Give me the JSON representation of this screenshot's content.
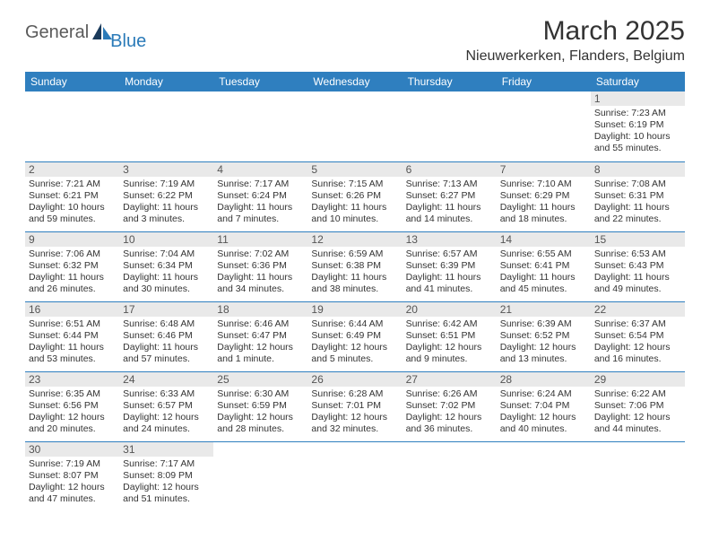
{
  "header": {
    "logo_text1": "General",
    "logo_text2": "Blue",
    "month_title": "March 2025",
    "location": "Nieuwerkerken, Flanders, Belgium"
  },
  "colors": {
    "header_bg": "#2f7fbf",
    "header_fg": "#ffffff",
    "daynum_bg": "#e9e9e9",
    "border": "#2f7fbf",
    "logo_gray": "#5a5a5a",
    "logo_blue": "#2a7ab8"
  },
  "calendar": {
    "day_headers": [
      "Sunday",
      "Monday",
      "Tuesday",
      "Wednesday",
      "Thursday",
      "Friday",
      "Saturday"
    ],
    "weeks": [
      [
        {
          "empty": true
        },
        {
          "empty": true
        },
        {
          "empty": true
        },
        {
          "empty": true
        },
        {
          "empty": true
        },
        {
          "empty": true
        },
        {
          "num": "1",
          "sunrise": "Sunrise: 7:23 AM",
          "sunset": "Sunset: 6:19 PM",
          "daylight1": "Daylight: 10 hours",
          "daylight2": "and 55 minutes."
        }
      ],
      [
        {
          "num": "2",
          "sunrise": "Sunrise: 7:21 AM",
          "sunset": "Sunset: 6:21 PM",
          "daylight1": "Daylight: 10 hours",
          "daylight2": "and 59 minutes."
        },
        {
          "num": "3",
          "sunrise": "Sunrise: 7:19 AM",
          "sunset": "Sunset: 6:22 PM",
          "daylight1": "Daylight: 11 hours",
          "daylight2": "and 3 minutes."
        },
        {
          "num": "4",
          "sunrise": "Sunrise: 7:17 AM",
          "sunset": "Sunset: 6:24 PM",
          "daylight1": "Daylight: 11 hours",
          "daylight2": "and 7 minutes."
        },
        {
          "num": "5",
          "sunrise": "Sunrise: 7:15 AM",
          "sunset": "Sunset: 6:26 PM",
          "daylight1": "Daylight: 11 hours",
          "daylight2": "and 10 minutes."
        },
        {
          "num": "6",
          "sunrise": "Sunrise: 7:13 AM",
          "sunset": "Sunset: 6:27 PM",
          "daylight1": "Daylight: 11 hours",
          "daylight2": "and 14 minutes."
        },
        {
          "num": "7",
          "sunrise": "Sunrise: 7:10 AM",
          "sunset": "Sunset: 6:29 PM",
          "daylight1": "Daylight: 11 hours",
          "daylight2": "and 18 minutes."
        },
        {
          "num": "8",
          "sunrise": "Sunrise: 7:08 AM",
          "sunset": "Sunset: 6:31 PM",
          "daylight1": "Daylight: 11 hours",
          "daylight2": "and 22 minutes."
        }
      ],
      [
        {
          "num": "9",
          "sunrise": "Sunrise: 7:06 AM",
          "sunset": "Sunset: 6:32 PM",
          "daylight1": "Daylight: 11 hours",
          "daylight2": "and 26 minutes."
        },
        {
          "num": "10",
          "sunrise": "Sunrise: 7:04 AM",
          "sunset": "Sunset: 6:34 PM",
          "daylight1": "Daylight: 11 hours",
          "daylight2": "and 30 minutes."
        },
        {
          "num": "11",
          "sunrise": "Sunrise: 7:02 AM",
          "sunset": "Sunset: 6:36 PM",
          "daylight1": "Daylight: 11 hours",
          "daylight2": "and 34 minutes."
        },
        {
          "num": "12",
          "sunrise": "Sunrise: 6:59 AM",
          "sunset": "Sunset: 6:38 PM",
          "daylight1": "Daylight: 11 hours",
          "daylight2": "and 38 minutes."
        },
        {
          "num": "13",
          "sunrise": "Sunrise: 6:57 AM",
          "sunset": "Sunset: 6:39 PM",
          "daylight1": "Daylight: 11 hours",
          "daylight2": "and 41 minutes."
        },
        {
          "num": "14",
          "sunrise": "Sunrise: 6:55 AM",
          "sunset": "Sunset: 6:41 PM",
          "daylight1": "Daylight: 11 hours",
          "daylight2": "and 45 minutes."
        },
        {
          "num": "15",
          "sunrise": "Sunrise: 6:53 AM",
          "sunset": "Sunset: 6:43 PM",
          "daylight1": "Daylight: 11 hours",
          "daylight2": "and 49 minutes."
        }
      ],
      [
        {
          "num": "16",
          "sunrise": "Sunrise: 6:51 AM",
          "sunset": "Sunset: 6:44 PM",
          "daylight1": "Daylight: 11 hours",
          "daylight2": "and 53 minutes."
        },
        {
          "num": "17",
          "sunrise": "Sunrise: 6:48 AM",
          "sunset": "Sunset: 6:46 PM",
          "daylight1": "Daylight: 11 hours",
          "daylight2": "and 57 minutes."
        },
        {
          "num": "18",
          "sunrise": "Sunrise: 6:46 AM",
          "sunset": "Sunset: 6:47 PM",
          "daylight1": "Daylight: 12 hours",
          "daylight2": "and 1 minute."
        },
        {
          "num": "19",
          "sunrise": "Sunrise: 6:44 AM",
          "sunset": "Sunset: 6:49 PM",
          "daylight1": "Daylight: 12 hours",
          "daylight2": "and 5 minutes."
        },
        {
          "num": "20",
          "sunrise": "Sunrise: 6:42 AM",
          "sunset": "Sunset: 6:51 PM",
          "daylight1": "Daylight: 12 hours",
          "daylight2": "and 9 minutes."
        },
        {
          "num": "21",
          "sunrise": "Sunrise: 6:39 AM",
          "sunset": "Sunset: 6:52 PM",
          "daylight1": "Daylight: 12 hours",
          "daylight2": "and 13 minutes."
        },
        {
          "num": "22",
          "sunrise": "Sunrise: 6:37 AM",
          "sunset": "Sunset: 6:54 PM",
          "daylight1": "Daylight: 12 hours",
          "daylight2": "and 16 minutes."
        }
      ],
      [
        {
          "num": "23",
          "sunrise": "Sunrise: 6:35 AM",
          "sunset": "Sunset: 6:56 PM",
          "daylight1": "Daylight: 12 hours",
          "daylight2": "and 20 minutes."
        },
        {
          "num": "24",
          "sunrise": "Sunrise: 6:33 AM",
          "sunset": "Sunset: 6:57 PM",
          "daylight1": "Daylight: 12 hours",
          "daylight2": "and 24 minutes."
        },
        {
          "num": "25",
          "sunrise": "Sunrise: 6:30 AM",
          "sunset": "Sunset: 6:59 PM",
          "daylight1": "Daylight: 12 hours",
          "daylight2": "and 28 minutes."
        },
        {
          "num": "26",
          "sunrise": "Sunrise: 6:28 AM",
          "sunset": "Sunset: 7:01 PM",
          "daylight1": "Daylight: 12 hours",
          "daylight2": "and 32 minutes."
        },
        {
          "num": "27",
          "sunrise": "Sunrise: 6:26 AM",
          "sunset": "Sunset: 7:02 PM",
          "daylight1": "Daylight: 12 hours",
          "daylight2": "and 36 minutes."
        },
        {
          "num": "28",
          "sunrise": "Sunrise: 6:24 AM",
          "sunset": "Sunset: 7:04 PM",
          "daylight1": "Daylight: 12 hours",
          "daylight2": "and 40 minutes."
        },
        {
          "num": "29",
          "sunrise": "Sunrise: 6:22 AM",
          "sunset": "Sunset: 7:06 PM",
          "daylight1": "Daylight: 12 hours",
          "daylight2": "and 44 minutes."
        }
      ],
      [
        {
          "num": "30",
          "sunrise": "Sunrise: 7:19 AM",
          "sunset": "Sunset: 8:07 PM",
          "daylight1": "Daylight: 12 hours",
          "daylight2": "and 47 minutes."
        },
        {
          "num": "31",
          "sunrise": "Sunrise: 7:17 AM",
          "sunset": "Sunset: 8:09 PM",
          "daylight1": "Daylight: 12 hours",
          "daylight2": "and 51 minutes."
        },
        {
          "empty": true
        },
        {
          "empty": true
        },
        {
          "empty": true
        },
        {
          "empty": true
        },
        {
          "empty": true
        }
      ]
    ]
  }
}
